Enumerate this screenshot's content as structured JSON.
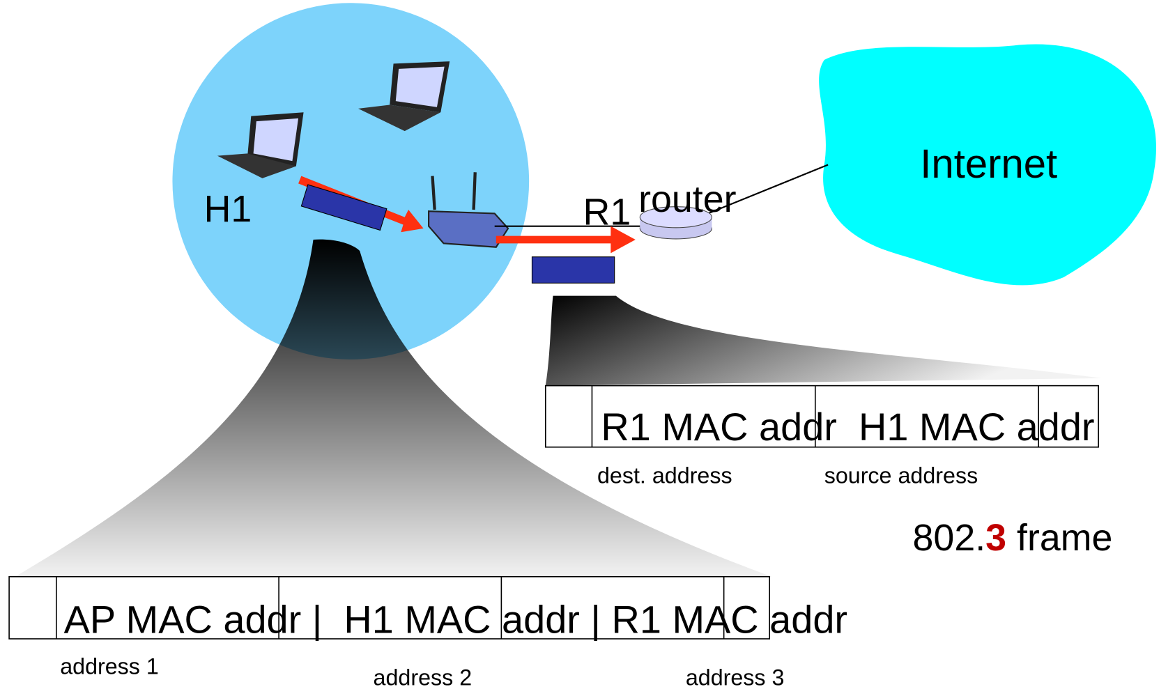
{
  "labels": {
    "host": "H1",
    "router_name": "R1",
    "router": "router",
    "cloud": "Internet"
  },
  "wifi_frame": {
    "text": "AP MAC addr |  H1 MAC addr | R1 MAC addr",
    "fields": [
      "address 1",
      "address 2",
      "address 3"
    ]
  },
  "ethernet_frame": {
    "text": "R1 MAC addr  H1 MAC addr",
    "fields": [
      "dest. address",
      "source address"
    ],
    "caption": {
      "prefix": "802.",
      "highlight": "3",
      "suffix": " frame"
    }
  }
}
